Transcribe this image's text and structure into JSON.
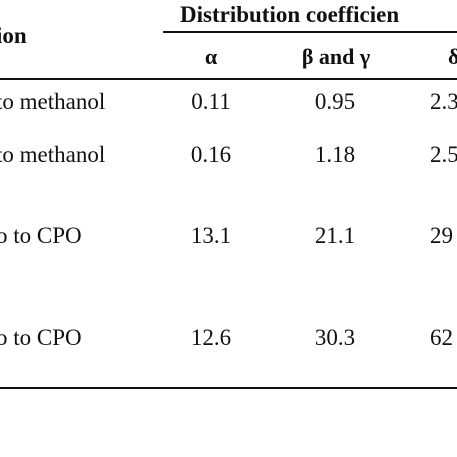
{
  "table": {
    "header": {
      "left_fragment": "ion",
      "group_title": "Distribution coefficien",
      "columns": [
        "α",
        "β and γ",
        "δ"
      ]
    },
    "rows": [
      {
        "label": "to methanol",
        "alpha": "0.11",
        "beta_gamma": "0.95",
        "delta": "2.3"
      },
      {
        "label": "to methanol",
        "alpha": "0.16",
        "beta_gamma": "1.18",
        "delta": "2.5"
      },
      {
        "label": "o to CPO",
        "alpha": "13.1",
        "beta_gamma": "21.1",
        "delta": "29"
      },
      {
        "label": "o to CPO",
        "alpha": "12.6",
        "beta_gamma": "30.3",
        "delta": "62"
      }
    ]
  }
}
